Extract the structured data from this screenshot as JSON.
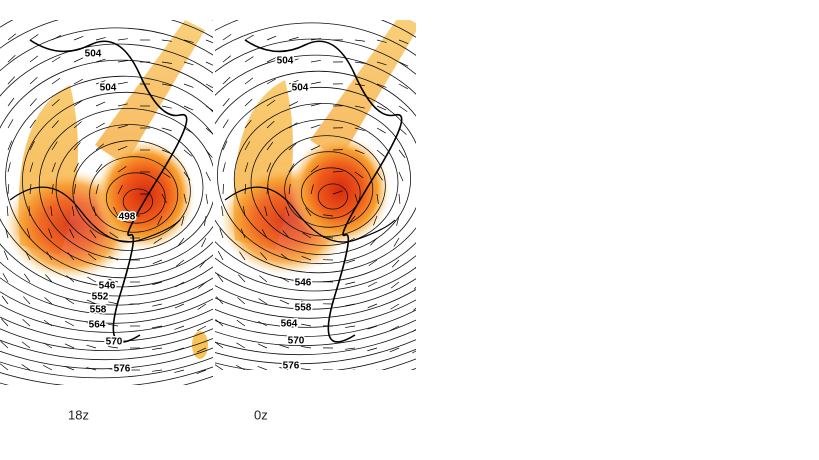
{
  "panels": [
    {
      "label": "18z",
      "contour_labels": [
        "504",
        "504",
        "498",
        "546",
        "552",
        "558",
        "564",
        "570",
        "576"
      ]
    },
    {
      "label": "0z",
      "contour_labels": [
        "504",
        "504",
        "546",
        "558",
        "564",
        "570",
        "576"
      ]
    }
  ]
}
